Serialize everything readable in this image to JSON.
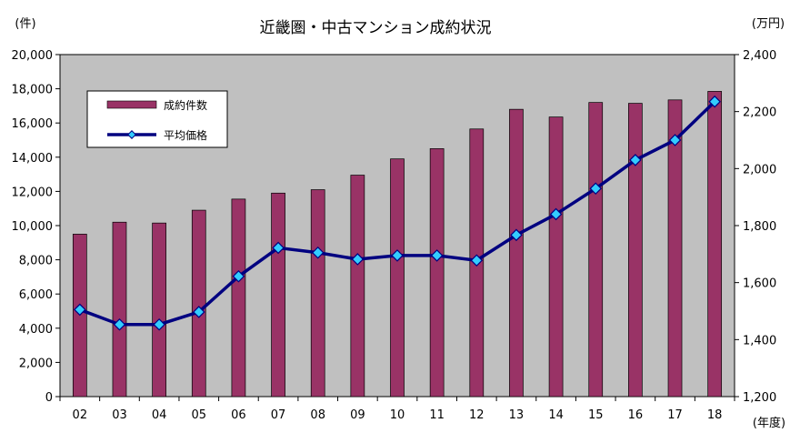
{
  "chart_data": {
    "type": "bar+line",
    "title": "近畿圏・中古マンション成約状況",
    "categories": [
      "02",
      "03",
      "04",
      "05",
      "06",
      "07",
      "08",
      "09",
      "10",
      "11",
      "12",
      "13",
      "14",
      "15",
      "16",
      "17",
      "18"
    ],
    "x_unit": "(年度)",
    "series": [
      {
        "name": "成約件数",
        "type": "bar",
        "axis": "left",
        "values": [
          9500,
          10200,
          10150,
          10900,
          11550,
          11900,
          12100,
          12950,
          13900,
          14500,
          15650,
          16800,
          16350,
          17200,
          17150,
          17350,
          17850
        ]
      },
      {
        "name": "平均価格",
        "type": "line",
        "axis": "right",
        "values": [
          1505,
          1453,
          1453,
          1497,
          1622,
          1722,
          1705,
          1682,
          1695,
          1695,
          1678,
          1767,
          1840,
          1930,
          2030,
          2100,
          2235
        ]
      }
    ],
    "y_left": {
      "unit": "(件)",
      "ylim": [
        0,
        20000
      ],
      "ticks": [
        "0",
        "2,000",
        "4,000",
        "6,000",
        "8,000",
        "10,000",
        "12,000",
        "14,000",
        "16,000",
        "18,000",
        "20,000"
      ]
    },
    "y_right": {
      "unit": "(万円)",
      "ylim": [
        1200,
        2400
      ],
      "ticks": [
        "1,200",
        "1,400",
        "1,600",
        "1,800",
        "2,000",
        "2,200",
        "2,400"
      ]
    },
    "grid": false,
    "legend_placement": "top-left",
    "colors": {
      "plot_bg": "#c0c0c0",
      "bar": "#993366",
      "line": "#000080",
      "marker": "#33ccff"
    }
  }
}
